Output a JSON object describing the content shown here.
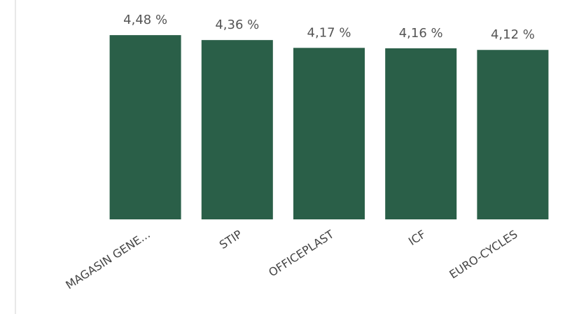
{
  "chart_data": {
    "type": "bar",
    "categories": [
      "MAGASIN GENE...",
      "STIP",
      "OFFICEPLAST",
      "ICF",
      "EURO-CYCLES"
    ],
    "values": [
      4.48,
      4.36,
      4.17,
      4.16,
      4.12
    ],
    "value_labels": [
      "4,48 %",
      "4,36 %",
      "4,17 %",
      "4,16 %",
      "4,12 %"
    ],
    "color": "#2a5f48",
    "ylim": [
      0,
      5.3
    ]
  }
}
